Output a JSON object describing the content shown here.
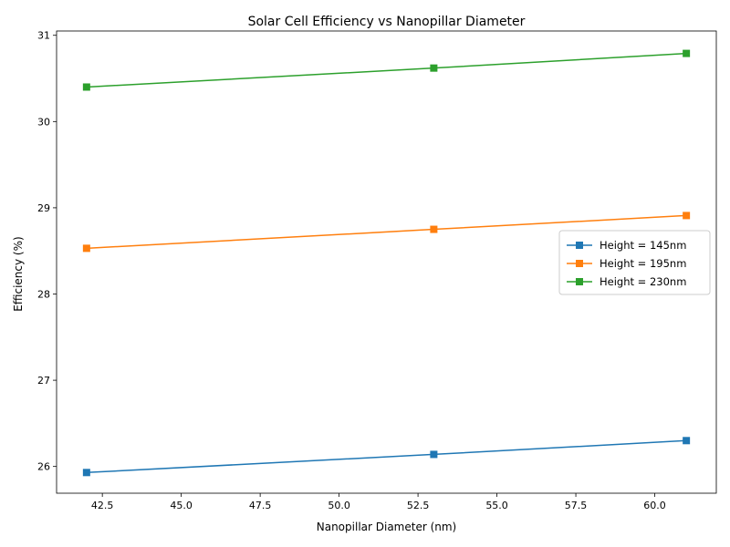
{
  "chart_data": {
    "type": "line",
    "title": "Solar Cell Efficiency vs Nanopillar Diameter",
    "xlabel": "Nanopillar Diameter (nm)",
    "ylabel": "Efficiency (%)",
    "xlim": [
      41.05,
      61.95
    ],
    "ylim": [
      25.69,
      31.05
    ],
    "xticks": [
      42.5,
      45.0,
      47.5,
      50.0,
      52.5,
      55.0,
      57.5,
      60.0
    ],
    "xtick_labels": [
      "42.5",
      "45.0",
      "47.5",
      "50.0",
      "52.5",
      "55.0",
      "57.5",
      "60.0"
    ],
    "yticks": [
      26,
      27,
      28,
      29,
      30,
      31
    ],
    "ytick_labels": [
      "26",
      "27",
      "28",
      "29",
      "30",
      "31"
    ],
    "x": [
      42,
      53,
      61
    ],
    "series": [
      {
        "name": "Height = 145nm",
        "values": [
          25.93,
          26.14,
          26.3
        ],
        "color": "#1f77b4",
        "marker": "square"
      },
      {
        "name": "Height = 195nm",
        "values": [
          28.53,
          28.75,
          28.91
        ],
        "color": "#ff7f0e",
        "marker": "square"
      },
      {
        "name": "Height = 230nm",
        "values": [
          30.4,
          30.62,
          30.79
        ],
        "color": "#2ca02c",
        "marker": "square"
      }
    ],
    "grid": false,
    "legend_position": "center-right"
  }
}
